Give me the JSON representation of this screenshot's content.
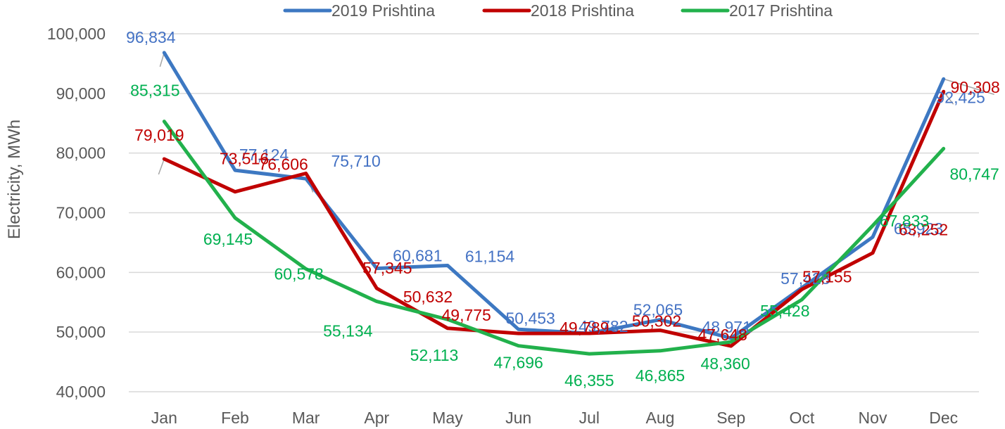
{
  "chart_data": {
    "type": "line",
    "title": "",
    "xlabel": "",
    "ylabel": "Electricity, MWh",
    "ylim": [
      40000,
      100000
    ],
    "y_tick_step": 10000,
    "grid": true,
    "legend_position": "top",
    "categories": [
      "Jan",
      "Feb",
      "Mar",
      "Apr",
      "May",
      "Jun",
      "Jul",
      "Aug",
      "Sep",
      "Oct",
      "Nov",
      "Dec"
    ],
    "series": [
      {
        "name": "2019 Prishtina",
        "color": "#3d78c2",
        "label_color": "#4472c4",
        "values": [
          96834,
          77124,
          75710,
          60681,
          61154,
          50453,
          49782,
          52065,
          48971,
          57428,
          65923,
          92425
        ],
        "labels": [
          "96,834",
          "77,124",
          "75,710",
          "60,681",
          "61,154",
          "50,453",
          "49,782",
          "52,065",
          "48,971",
          "57,428",
          "65,923",
          "92,425"
        ]
      },
      {
        "name": "2018 Prishtina",
        "color": "#c00000",
        "label_color": "#c00000",
        "values": [
          79019,
          73516,
          76606,
          57345,
          50632,
          49775,
          49789,
          50302,
          47648,
          57155,
          63252,
          90308
        ],
        "labels": [
          "79,019",
          "73,516",
          "76,606",
          "57,345",
          "50,632",
          "49,775",
          "49,789",
          "50,302",
          "47,648",
          "57,155",
          "63,252",
          "90,308"
        ]
      },
      {
        "name": "2017 Prishtina",
        "color": "#22b14c",
        "label_color": "#00b050",
        "values": [
          85315,
          69145,
          60578,
          55134,
          52113,
          47696,
          46355,
          46865,
          48360,
          55428,
          67833,
          80747
        ],
        "labels": [
          "85,315",
          "69,145",
          "60,578",
          "55,134",
          "52,113",
          "47,696",
          "46,355",
          "46,865",
          "48,360",
          "55,428",
          "67,833",
          "80,747"
        ]
      }
    ]
  }
}
